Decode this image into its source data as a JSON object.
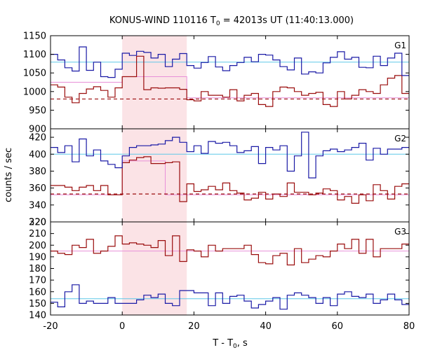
{
  "chart_data": {
    "type": "line",
    "title_main": "KONUS-WIND 110116 T",
    "title_sub": "0",
    "title_rest": " = 42013s UT (11:40:13.000)",
    "xlabel_main": "T - T",
    "xlabel_sub": "0",
    "xlabel_rest": ", s",
    "ylabel": "counts / sec",
    "xlim": [
      -20,
      80
    ],
    "x_ticks": [
      -20,
      0,
      20,
      40,
      60,
      80
    ],
    "highlight_interval": [
      0,
      18
    ],
    "bin_edges": [
      -20,
      -18,
      -16,
      -14,
      -12,
      -10,
      -8,
      -6,
      -4,
      -2,
      0,
      2,
      4,
      6,
      8,
      10,
      12,
      14,
      16,
      18,
      20,
      22,
      24,
      26,
      28,
      30,
      32,
      34,
      36,
      38,
      40,
      42,
      44,
      46,
      48,
      50,
      52,
      54,
      56,
      58,
      60,
      62,
      64,
      66,
      68,
      70,
      72,
      74,
      76,
      78,
      80
    ],
    "panels": [
      {
        "label": "G1",
        "ylim": [
          900,
          1150
        ],
        "y_ticks": [
          900,
          950,
          1000,
          1050,
          1100,
          1150
        ],
        "blue_values": [
          1100,
          1085,
          1064,
          1055,
          1120,
          1057,
          1079,
          1040,
          1038,
          1060,
          1103,
          1097,
          1108,
          1105,
          1090,
          1100,
          1067,
          1087,
          1102,
          1070,
          1063,
          1078,
          1094,
          1066,
          1056,
          1070,
          1078,
          1092,
          1080,
          1100,
          1098,
          1085,
          1067,
          1058,
          1090,
          1047,
          1053,
          1050,
          1077,
          1092,
          1107,
          1087,
          1092,
          1065,
          1064,
          1095,
          1070,
          1090,
          1103,
          1043
        ],
        "blue_level": 1079,
        "red_values": [
          1018,
          1012,
          985,
          970,
          995,
          1007,
          1013,
          1003,
          985,
          1010,
          1040,
          1040,
          1095,
          1005,
          1010,
          1009,
          1010,
          1010,
          1006,
          978,
          975,
          1000,
          990,
          990,
          985,
          1005,
          975,
          990,
          995,
          965,
          960,
          1000,
          1012,
          1010,
          1000,
          990,
          995,
          998,
          965,
          960,
          1000,
          980,
          990,
          1005,
          1000,
          995,
          1018,
          1036,
          1043,
          995
        ],
        "pink_segments": [
          [
            -20,
            1025,
            0
          ],
          [
            0,
            1040,
            18
          ],
          [
            18,
            983,
            80
          ]
        ],
        "dashed_level": 980
      },
      {
        "label": "G2",
        "ylim": [
          320,
          430
        ],
        "y_ticks": [
          320,
          340,
          360,
          380,
          400,
          420
        ],
        "blue_values": [
          408,
          402,
          410,
          391,
          418,
          398,
          405,
          392,
          388,
          384,
          398,
          408,
          410,
          410,
          411,
          412,
          416,
          420,
          414,
          403,
          410,
          401,
          415,
          413,
          414,
          410,
          402,
          404,
          409,
          389,
          408,
          405,
          410,
          380,
          398,
          426,
          372,
          398,
          404,
          406,
          403,
          405,
          408,
          413,
          393,
          407,
          400,
          406,
          406,
          408
        ],
        "blue_level": 400,
        "red_values": [
          363,
          363,
          361,
          357,
          361,
          363,
          357,
          363,
          352,
          352,
          390,
          393,
          396,
          397,
          389,
          389,
          390,
          391,
          344,
          365,
          356,
          358,
          362,
          358,
          366,
          357,
          354,
          346,
          348,
          355,
          347,
          353,
          350,
          366,
          355,
          355,
          352,
          354,
          359,
          357,
          346,
          350,
          342,
          352,
          345,
          364,
          357,
          347,
          362,
          365
        ],
        "pink_segments": [
          [
            -20,
            352,
            0
          ],
          [
            0,
            392,
            12
          ],
          [
            12,
            352,
            80
          ]
        ],
        "dashed_level": 353
      },
      {
        "label": "G3",
        "ylim": [
          140,
          220
        ],
        "y_ticks": [
          140,
          150,
          160,
          170,
          180,
          190,
          200,
          210,
          220
        ],
        "blue_values": [
          151,
          147,
          160,
          166,
          150,
          152,
          150,
          150,
          155,
          150,
          150,
          150,
          153,
          157,
          155,
          158,
          150,
          148,
          161,
          161,
          159,
          159,
          148,
          159,
          150,
          156,
          157,
          152,
          146,
          149,
          152,
          155,
          145,
          157,
          159,
          157,
          155,
          150,
          155,
          148,
          158,
          160,
          156,
          155,
          158,
          150,
          153,
          158,
          153,
          149
        ],
        "blue_level": 154,
        "red_values": [
          195,
          193,
          192,
          200,
          198,
          205,
          193,
          195,
          199,
          208,
          201,
          202,
          201,
          200,
          198,
          204,
          191,
          208,
          186,
          196,
          195,
          190,
          200,
          195,
          197,
          197,
          197,
          200,
          192,
          185,
          184,
          191,
          193,
          183,
          197,
          185,
          188,
          191,
          190,
          195,
          201,
          197,
          205,
          193,
          205,
          190,
          197,
          197,
          197,
          201
        ],
        "pink_level": 195
      }
    ],
    "colors": {
      "blue": "#1a1aa6",
      "red": "#9a0d0d",
      "cyan": "#5fc8e8",
      "pink": "#e890d8",
      "highlight": "#fbe3e6"
    }
  }
}
